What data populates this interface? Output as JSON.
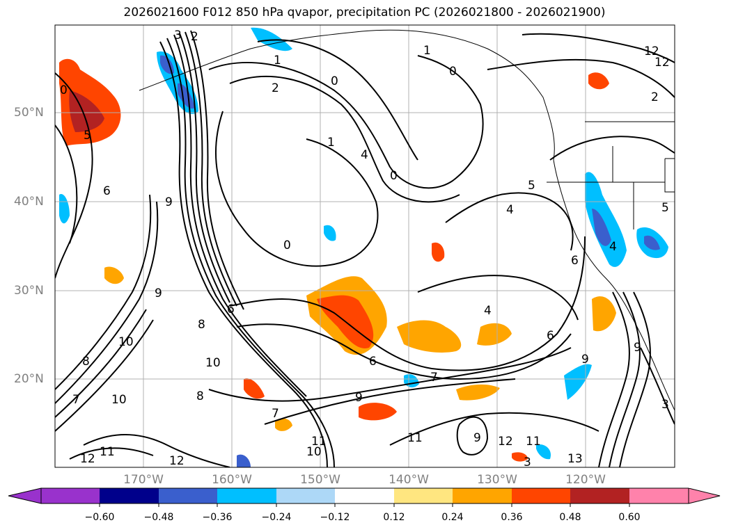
{
  "title": "2026021600 F012 850 hPa qvapor, precipitation PC (2026021800 - 2026021900)",
  "lat_labels": [
    "50°N",
    "40°N",
    "30°N",
    "20°N"
  ],
  "lon_labels": [
    "170°W",
    "160°W",
    "150°W",
    "140°W",
    "130°W",
    "120°W"
  ],
  "colorbar": {
    "ticks": [
      "−0.60",
      "−0.48",
      "−0.36",
      "−0.24",
      "−0.12",
      "0.12",
      "0.24",
      "0.36",
      "0.48",
      "0.60"
    ],
    "colors": [
      "#9932cc",
      "#00008b",
      "#3a5fcd",
      "#00bfff",
      "#add8f7",
      "#ffffff",
      "#ffe680",
      "#ffa500",
      "#ff4500",
      "#b22222",
      "#ff82ab"
    ],
    "extend": "both"
  },
  "contour_labels": [
    "3",
    "2",
    "1",
    "0",
    "2",
    "1",
    "0",
    "4",
    "0",
    "1",
    "2",
    "0",
    "9",
    "6",
    "6",
    "5",
    "4",
    "6",
    "9",
    "10",
    "10",
    "8",
    "7",
    "9",
    "7",
    "6",
    "4",
    "6",
    "8",
    "9",
    "10",
    "11",
    "12",
    "12",
    "11",
    "10",
    "9",
    "12",
    "11",
    "13",
    "3",
    "3",
    "5",
    "4",
    "0",
    "9",
    "11",
    "12",
    "12",
    "5",
    "8",
    "7"
  ],
  "colors": {
    "axis_label": "#808080",
    "grid": "#b0b0b0",
    "contour": "#000000"
  }
}
